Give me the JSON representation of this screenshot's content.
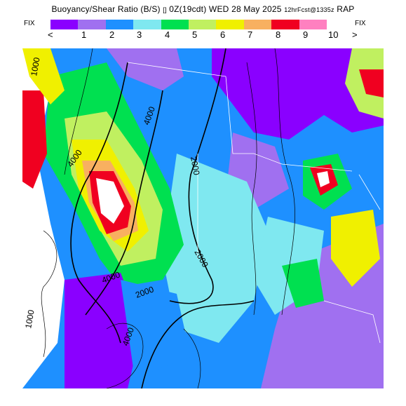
{
  "header": {
    "title_main": "Buoyancy/Shear Ratio (B/S)",
    "title_valid": "0Z(19cdt) WED 28 May 2025",
    "title_fcst": "12hrFcst@1335z",
    "title_model": "RAP",
    "cross_glyph": "[]"
  },
  "legend": {
    "fix_left": "FIX",
    "fix_right": "FIX",
    "lt": "<",
    "gt": ">",
    "ticks": [
      "1",
      "2",
      "3",
      "4",
      "5",
      "6",
      "7",
      "8",
      "9",
      "10"
    ],
    "colors": [
      "#8a00ff",
      "#a070f0",
      "#1e90ff",
      "#7fe8f0",
      "#00e050",
      "#c0f060",
      "#f0f000",
      "#f8b060",
      "#f00020",
      "#ff80c0"
    ]
  },
  "map": {
    "contour_labels": [
      "4000",
      "4000",
      "2000",
      "2000",
      "2000",
      "1000",
      "4000",
      "4000",
      "1000"
    ]
  }
}
